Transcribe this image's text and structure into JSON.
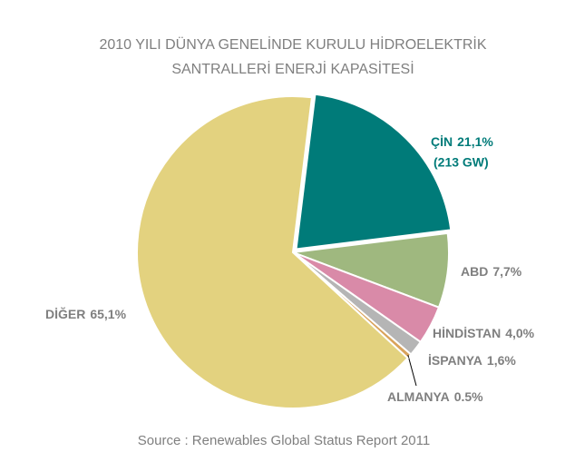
{
  "chart_data": {
    "type": "pie",
    "title": [
      "2010 YILI DÜNYA GENELİNDE KURULU HİDROELEKTRİK",
      "SANTRALLERİ ENERJİ KAPASİTESİ"
    ],
    "categories": [
      "ÇİN",
      "ABD",
      "HİNDİSTAN",
      "İSPANYA",
      "ALMANYA",
      "DİĞER"
    ],
    "values": [
      21.1,
      7.7,
      4.0,
      1.6,
      0.5,
      65.1
    ],
    "value_labels": [
      "21,1%",
      "7,7%",
      "4,0%",
      "1,6%",
      "0.5%",
      "65,1%"
    ],
    "colors": [
      "#007b79",
      "#9fb87f",
      "#d98aa8",
      "#b5b5b5",
      "#d9a35c",
      "#e3d27f"
    ],
    "annotation": "(213 GW)",
    "source": "Source : Renewables Global  Status Report 2011"
  }
}
